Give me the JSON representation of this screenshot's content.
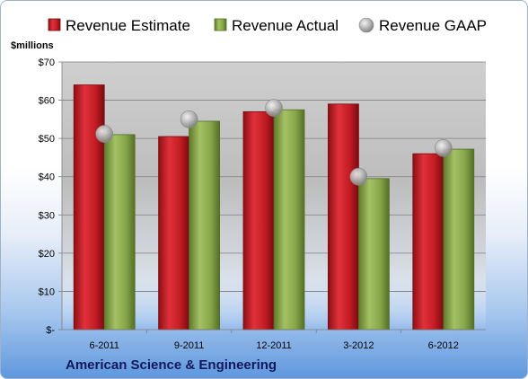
{
  "chart_data": {
    "type": "bar",
    "categories": [
      "6-2011",
      "9-2011",
      "12-2011",
      "3-2012",
      "6-2012"
    ],
    "series": [
      {
        "name": "Revenue Estimate",
        "kind": "bar",
        "color": "#d1242b",
        "values": [
          64,
          50.5,
          57,
          59,
          46
        ]
      },
      {
        "name": "Revenue Actual",
        "kind": "bar",
        "color": "#8fb04e",
        "values": [
          51,
          54.5,
          57.5,
          39.5,
          47.2
        ]
      },
      {
        "name": "Revenue GAAP",
        "kind": "marker",
        "color": "#b9b9b9",
        "values": [
          51.2,
          55,
          58,
          40,
          47.5
        ]
      }
    ],
    "ylabel": "$millions",
    "ylim": [
      0,
      70
    ],
    "yticks": [
      0,
      10,
      20,
      30,
      40,
      50,
      60,
      70
    ],
    "ytick_labels": [
      "$-",
      "$10",
      "$20",
      "$30",
      "$40",
      "$50",
      "$60",
      "$70"
    ],
    "grid": true,
    "legend_position": "top",
    "company": "American Science & Engineering"
  }
}
